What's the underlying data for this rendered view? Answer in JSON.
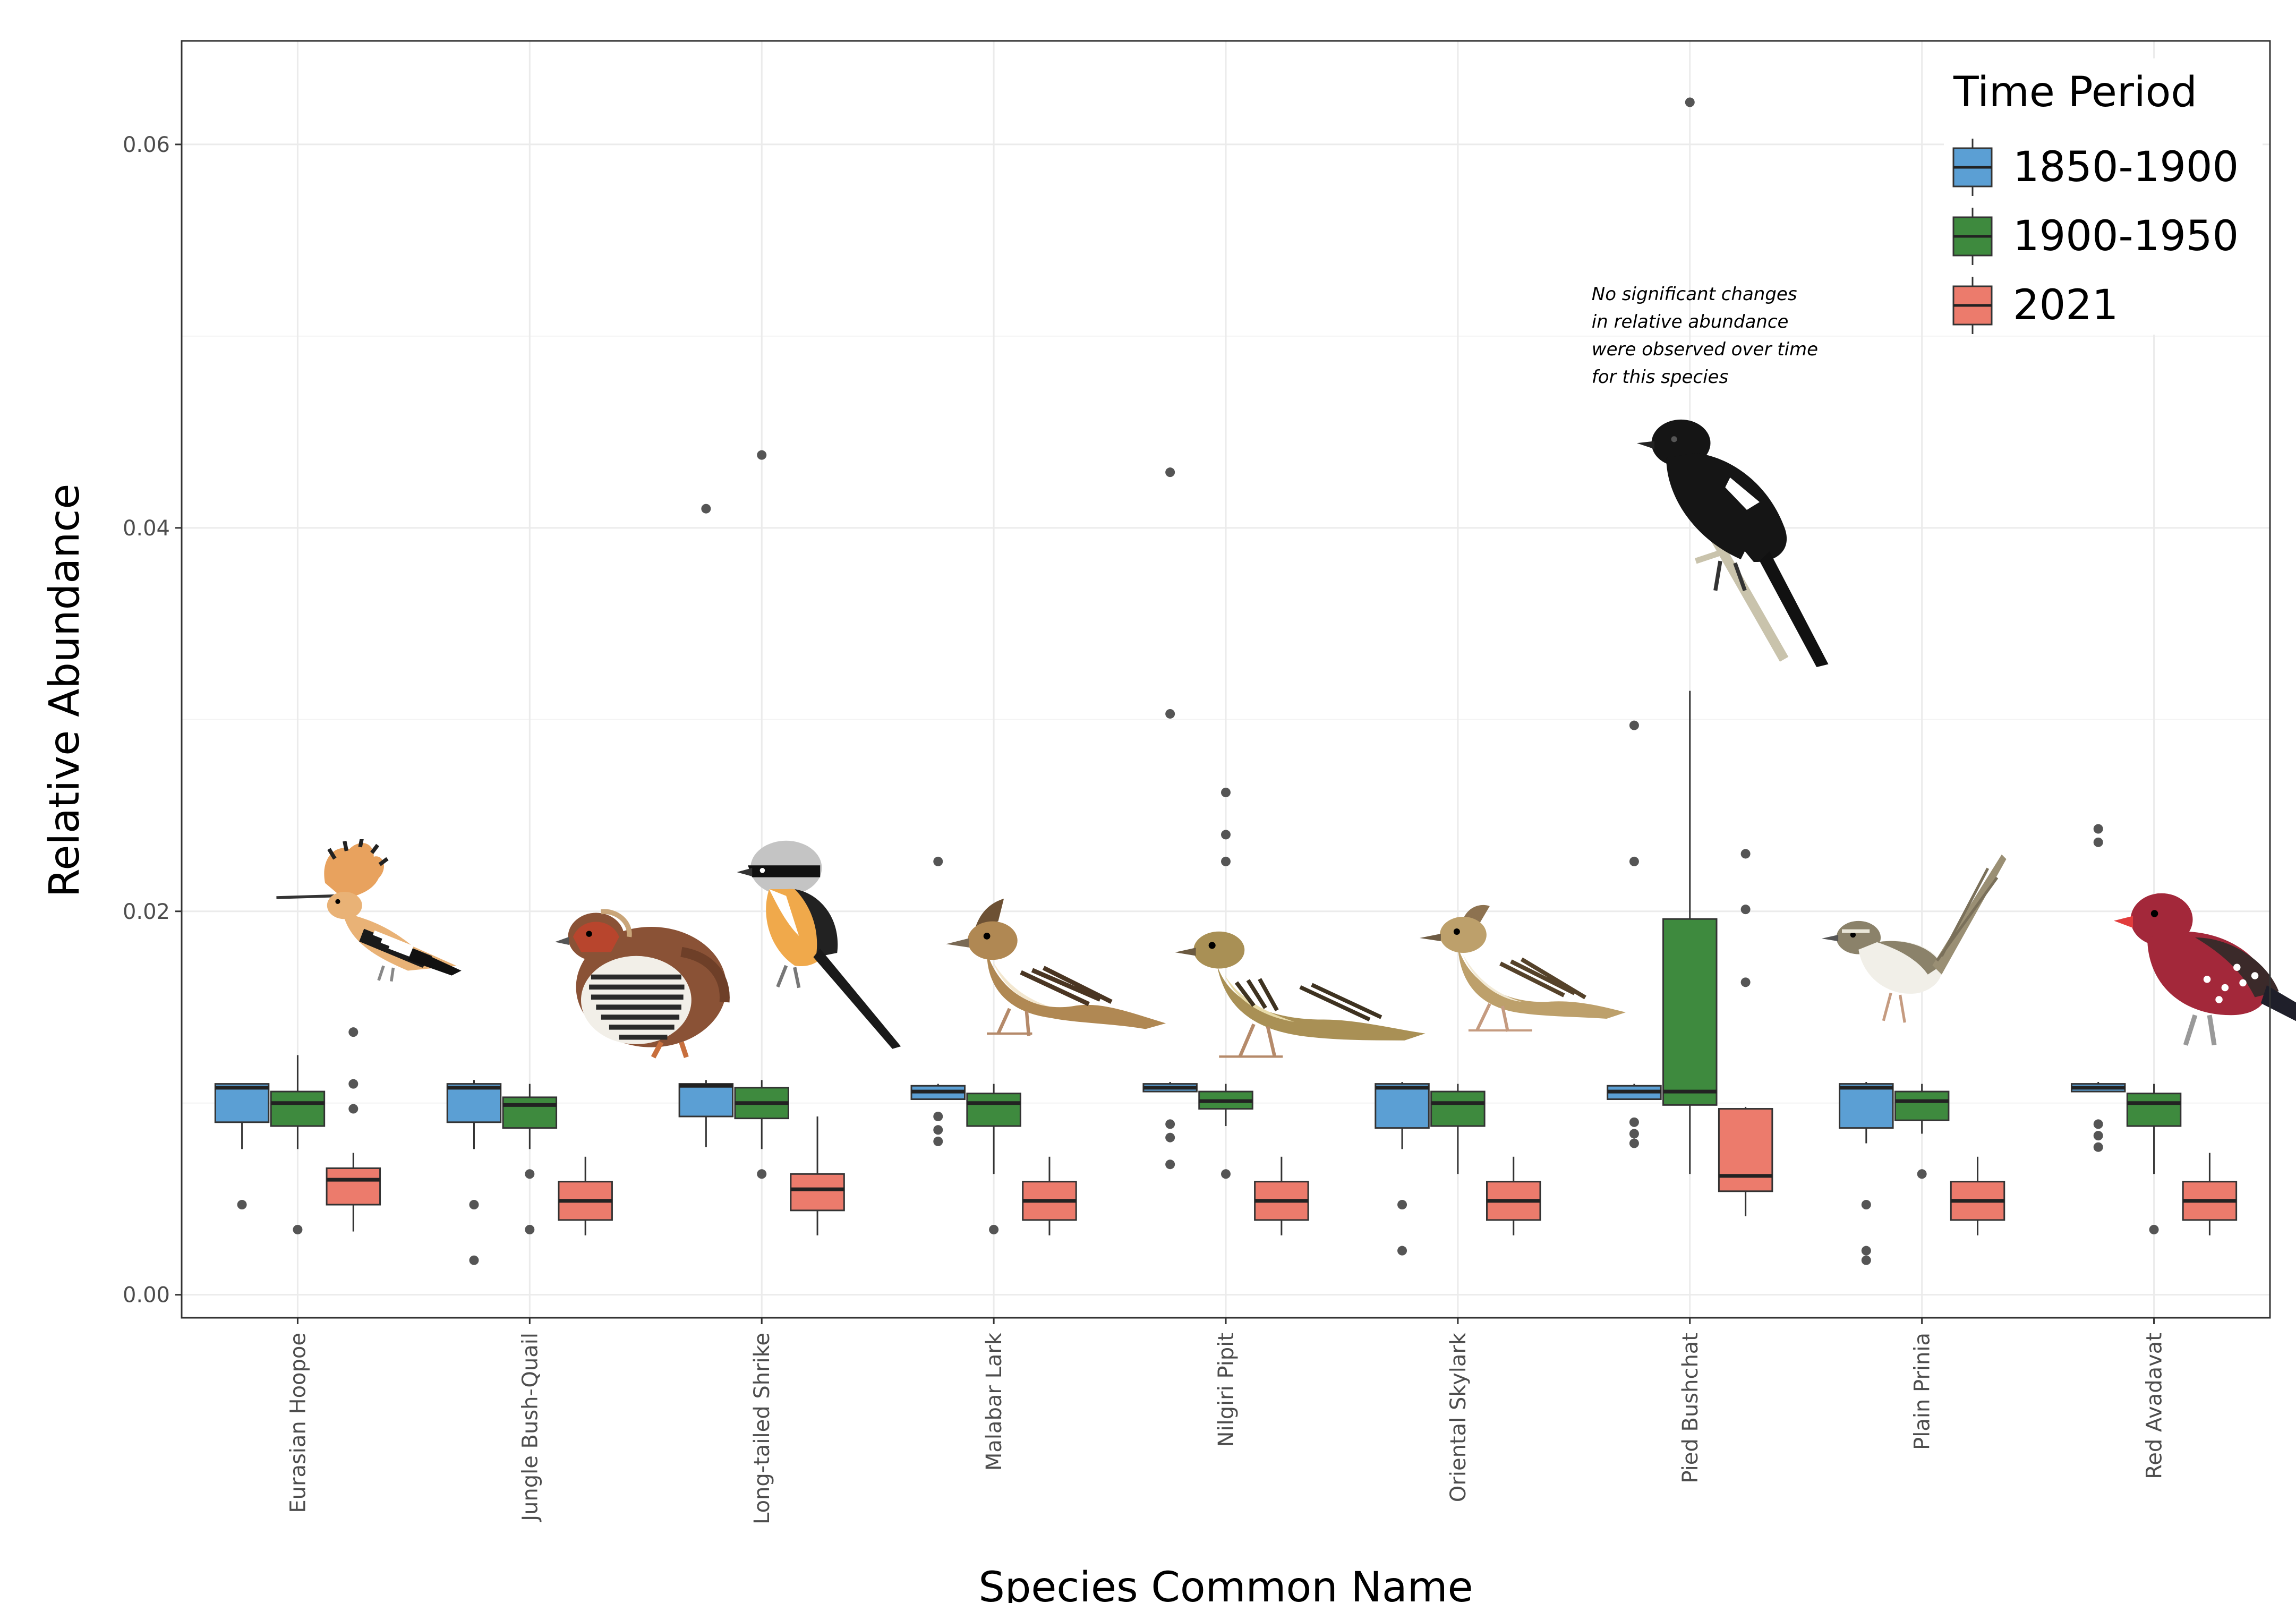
{
  "chart_data": {
    "type": "box",
    "xlabel": "Species Common Name",
    "ylabel": "Relative Abundance",
    "ylim": [
      -0.0012,
      0.0654
    ],
    "yticks": [
      0.0,
      0.02,
      0.04,
      0.06
    ],
    "ytick_labels": [
      "0.00",
      "0.02",
      "0.04",
      "0.06"
    ],
    "grid": true,
    "legend": {
      "title": "Time Period",
      "placement": "top-right",
      "entries": [
        "1850-1900",
        "1900-1950",
        "2021"
      ]
    },
    "series": [
      {
        "name": "1850-1900",
        "color": "#5b9fd4"
      },
      {
        "name": "1900-1950",
        "color": "#3e8a3e"
      },
      {
        "name": "2021",
        "color": "#ec7b6c"
      }
    ],
    "categories": [
      "Eurasian Hoopoe",
      "Jungle Bush-Quail",
      "Long-tailed Shrike",
      "Malabar Lark",
      "Nilgiri Pipit",
      "Oriental Skylark",
      "Pied Bushchat",
      "Plain Prinia",
      "Red Avadavat"
    ],
    "boxes": [
      [
        {
          "q1": 0.009,
          "median": 0.0108,
          "q3": 0.011,
          "lo": 0.0076,
          "hi": 0.011,
          "out": [
            0.0047
          ]
        },
        {
          "q1": 0.0088,
          "median": 0.01,
          "q3": 0.0106,
          "lo": 0.0076,
          "hi": 0.0125,
          "out": [
            0.0034
          ]
        },
        {
          "q1": 0.0047,
          "median": 0.006,
          "q3": 0.0066,
          "lo": 0.0033,
          "hi": 0.0074,
          "out": [
            0.0097,
            0.011,
            0.0137
          ]
        }
      ],
      [
        {
          "q1": 0.009,
          "median": 0.0108,
          "q3": 0.011,
          "lo": 0.0076,
          "hi": 0.0112,
          "out": [
            0.0047,
            0.0018
          ]
        },
        {
          "q1": 0.0087,
          "median": 0.0099,
          "q3": 0.0103,
          "lo": 0.0076,
          "hi": 0.011,
          "out": [
            0.0063,
            0.0034
          ]
        },
        {
          "q1": 0.0039,
          "median": 0.0049,
          "q3": 0.0059,
          "lo": 0.0031,
          "hi": 0.0072,
          "out": []
        }
      ],
      [
        {
          "q1": 0.0093,
          "median": 0.0109,
          "q3": 0.011,
          "lo": 0.0077,
          "hi": 0.0112,
          "out": [
            0.041
          ]
        },
        {
          "q1": 0.0092,
          "median": 0.01,
          "q3": 0.0108,
          "lo": 0.0076,
          "hi": 0.0112,
          "out": [
            0.0063,
            0.0438
          ]
        },
        {
          "q1": 0.0044,
          "median": 0.0055,
          "q3": 0.0063,
          "lo": 0.0031,
          "hi": 0.0093,
          "out": []
        }
      ],
      [
        {
          "q1": 0.0102,
          "median": 0.0106,
          "q3": 0.0109,
          "lo": 0.0102,
          "hi": 0.011,
          "out": [
            0.0093,
            0.0086,
            0.008,
            0.0226
          ]
        },
        {
          "q1": 0.0088,
          "median": 0.01,
          "q3": 0.0105,
          "lo": 0.0063,
          "hi": 0.011,
          "out": [
            0.0034
          ]
        },
        {
          "q1": 0.0039,
          "median": 0.0049,
          "q3": 0.0059,
          "lo": 0.0031,
          "hi": 0.0072,
          "out": []
        }
      ],
      [
        {
          "q1": 0.0106,
          "median": 0.0108,
          "q3": 0.011,
          "lo": 0.0106,
          "hi": 0.0111,
          "out": [
            0.0089,
            0.0082,
            0.0068,
            0.0303,
            0.0429
          ]
        },
        {
          "q1": 0.0097,
          "median": 0.0101,
          "q3": 0.0106,
          "lo": 0.0088,
          "hi": 0.011,
          "out": [
            0.0063,
            0.0226,
            0.024,
            0.0262
          ]
        },
        {
          "q1": 0.0039,
          "median": 0.0049,
          "q3": 0.0059,
          "lo": 0.0031,
          "hi": 0.0072,
          "out": []
        }
      ],
      [
        {
          "q1": 0.0087,
          "median": 0.0108,
          "q3": 0.011,
          "lo": 0.0076,
          "hi": 0.0111,
          "out": [
            0.0047,
            0.0023
          ]
        },
        {
          "q1": 0.0088,
          "median": 0.01,
          "q3": 0.0106,
          "lo": 0.0063,
          "hi": 0.011,
          "out": []
        },
        {
          "q1": 0.0039,
          "median": 0.0049,
          "q3": 0.0059,
          "lo": 0.0031,
          "hi": 0.0072,
          "out": []
        }
      ],
      [
        {
          "q1": 0.0102,
          "median": 0.0106,
          "q3": 0.0109,
          "lo": 0.0102,
          "hi": 0.011,
          "out": [
            0.009,
            0.0084,
            0.0079,
            0.0226,
            0.0297
          ]
        },
        {
          "q1": 0.0099,
          "median": 0.0106,
          "q3": 0.0196,
          "lo": 0.0063,
          "hi": 0.0315,
          "out": [
            0.0622
          ]
        },
        {
          "q1": 0.0054,
          "median": 0.0062,
          "q3": 0.0097,
          "lo": 0.0041,
          "hi": 0.0098,
          "out": [
            0.0163,
            0.0201,
            0.023
          ]
        }
      ],
      [
        {
          "q1": 0.0087,
          "median": 0.0108,
          "q3": 0.011,
          "lo": 0.0079,
          "hi": 0.0111,
          "out": [
            0.0047,
            0.0023,
            0.0018
          ]
        },
        {
          "q1": 0.0091,
          "median": 0.0101,
          "q3": 0.0106,
          "lo": 0.0084,
          "hi": 0.011,
          "out": [
            0.0063
          ]
        },
        {
          "q1": 0.0039,
          "median": 0.0049,
          "q3": 0.0059,
          "lo": 0.0031,
          "hi": 0.0072,
          "out": []
        }
      ],
      [
        {
          "q1": 0.0106,
          "median": 0.0108,
          "q3": 0.011,
          "lo": 0.0106,
          "hi": 0.0111,
          "out": [
            0.0089,
            0.0083,
            0.0077,
            0.0236,
            0.0243
          ]
        },
        {
          "q1": 0.0088,
          "median": 0.01,
          "q3": 0.0105,
          "lo": 0.0063,
          "hi": 0.011,
          "out": [
            0.0034
          ]
        },
        {
          "q1": 0.0039,
          "median": 0.0049,
          "q3": 0.0059,
          "lo": 0.0031,
          "hi": 0.0074,
          "out": []
        }
      ]
    ],
    "annotation": {
      "category": "Pied Bushchat",
      "lines": [
        "No significant changes",
        "in relative abundance",
        "were observed over time",
        "for this species"
      ]
    },
    "bird_illustrations": [
      {
        "category": "Eurasian Hoopoe",
        "icon": "hoopoe-illustration",
        "colors": {
          "body": "#e9b276",
          "wing": "#1a1a1a",
          "stripe": "#ffffff",
          "crest": "#e8a25e"
        }
      },
      {
        "category": "Jungle Bush-Quail",
        "icon": "bush-quail-illustration",
        "colors": {
          "body": "#8a5236",
          "barred": "#2a2a2a",
          "face": "#b8452d"
        }
      },
      {
        "category": "Long-tailed Shrike",
        "icon": "shrike-illustration",
        "colors": {
          "head": "#c4c4c4",
          "mask": "#111111",
          "belly": "#f0a94b",
          "tail": "#1a1a1a"
        }
      },
      {
        "category": "Malabar Lark",
        "icon": "malabar-lark-illustration",
        "colors": {
          "body": "#b08853",
          "streak": "#4a3522",
          "belly": "#f3e7cf"
        }
      },
      {
        "category": "Nilgiri Pipit",
        "icon": "nilgiri-pipit-illustration",
        "colors": {
          "body": "#a99055",
          "streak": "#3e3220",
          "belly": "#e8dba9"
        }
      },
      {
        "category": "Oriental Skylark",
        "icon": "skylark-illustration",
        "colors": {
          "body": "#bda06b",
          "streak": "#55422a",
          "belly": "#f2ead6"
        }
      },
      {
        "category": "Pied Bushchat",
        "icon": "pied-bushchat-illustration",
        "colors": {
          "body": "#151515",
          "patch": "#ffffff",
          "perch": "#c9c3ac"
        }
      },
      {
        "category": "Plain Prinia",
        "icon": "plain-prinia-illustration",
        "colors": {
          "back": "#8b826a",
          "belly": "#f1efe8",
          "tail": "#9a8f74"
        }
      },
      {
        "category": "Red Avadavat",
        "icon": "red-avadavat-illustration",
        "colors": {
          "body": "#a3283a",
          "spots": "#ffffff",
          "wing": "#3b2a2a",
          "beak": "#e23c3c"
        }
      }
    ]
  }
}
